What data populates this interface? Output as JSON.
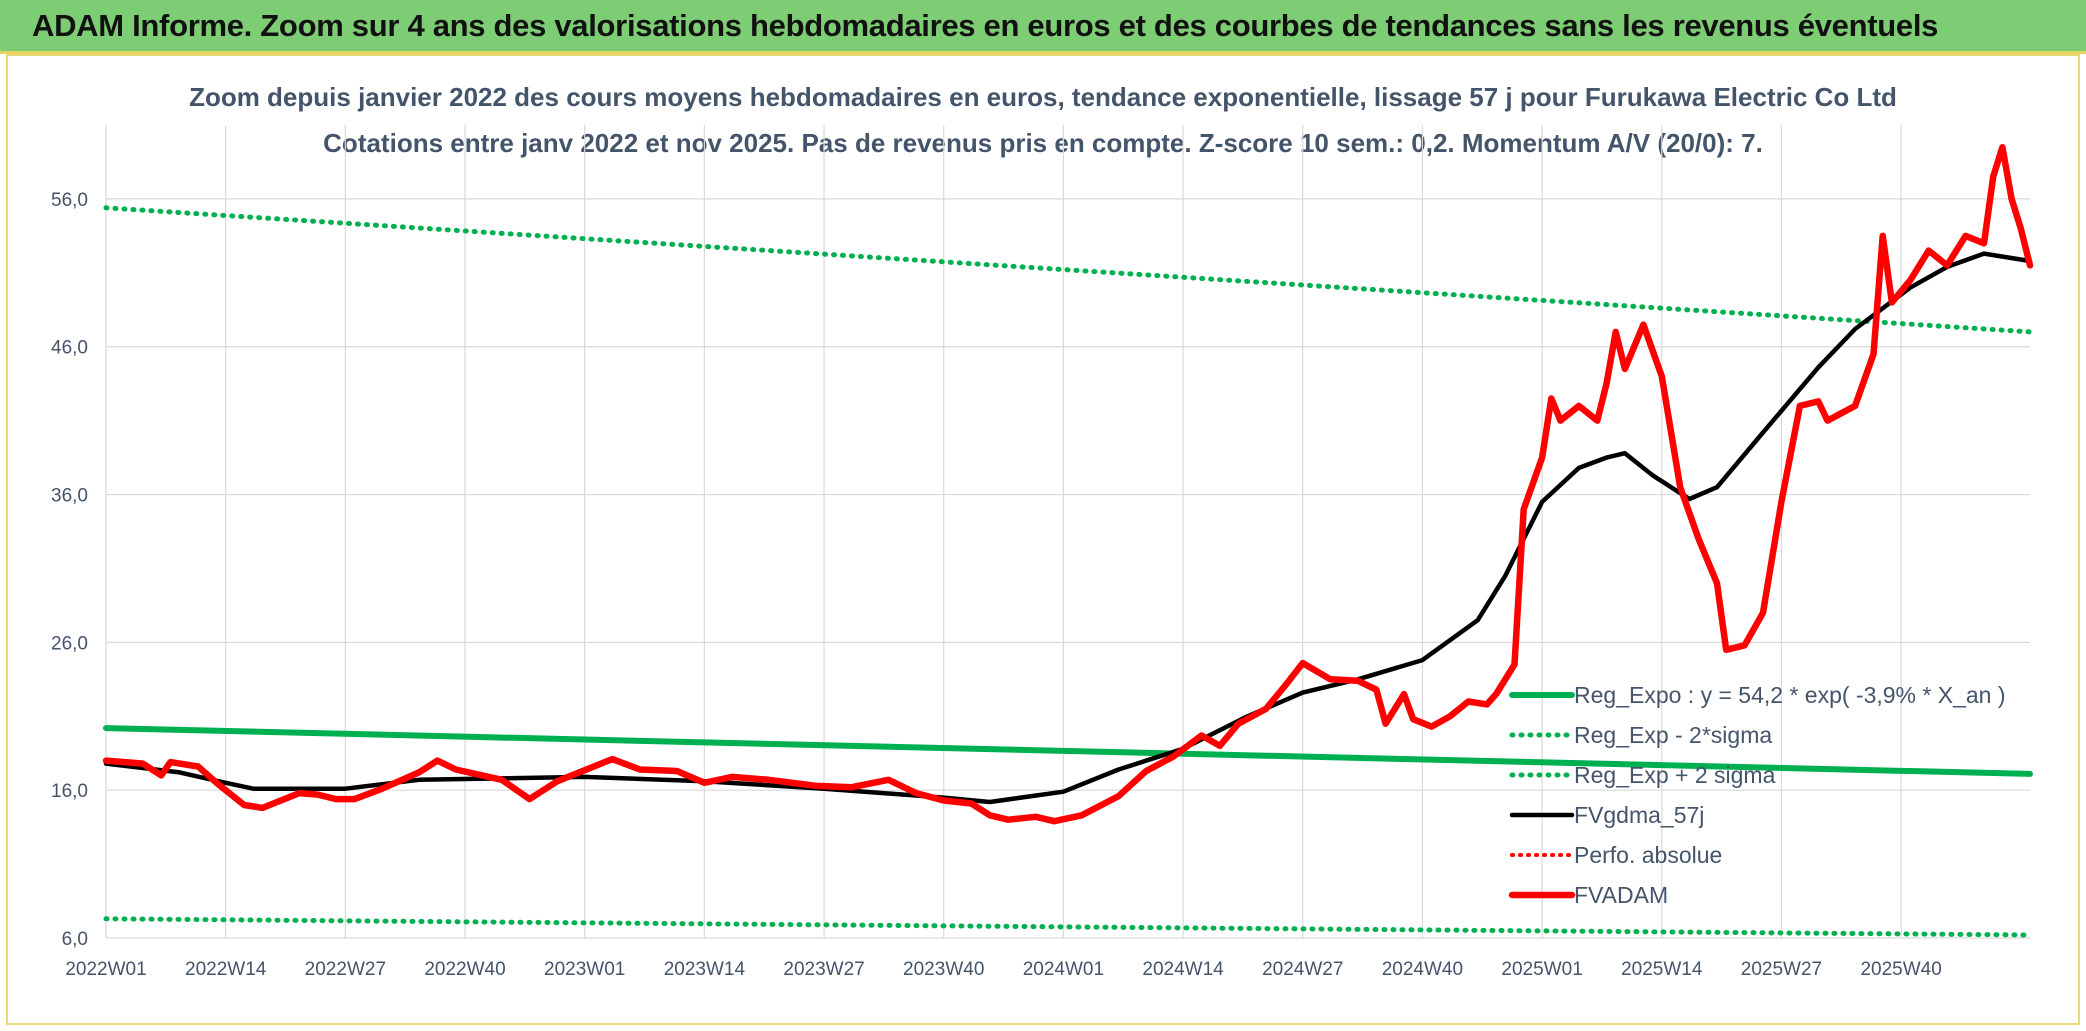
{
  "banner": {
    "title": "ADAM Informe. Zoom sur 4 ans des valorisations hebdomadaires en euros et des courbes de tendances sans les revenus éventuels"
  },
  "colors": {
    "banner_bg": "#7dcd74",
    "trend": "#00b050",
    "smoothed": "#000000",
    "price": "#ff0000",
    "text": "#44546a"
  },
  "chart_data": {
    "type": "line",
    "title": "Zoom depuis janvier 2022 des cours moyens hebdomadaires en euros, tendance exponentielle, lissage 57 j pour Furukawa Electric Co Ltd",
    "subtitle": "Cotations entre janv 2022 et nov 2025. Pas de revenus pris en compte. Z-score 10 sem.: 0,2. Momentum A/V (20/0): 7.",
    "xlabel": "",
    "ylabel": "",
    "ylim": [
      6,
      61
    ],
    "yticks": [
      "6,0",
      "16,0",
      "26,0",
      "36,0",
      "46,0",
      "56,0"
    ],
    "ytick_values": [
      6,
      16,
      26,
      36,
      46,
      56
    ],
    "xticks": [
      "2022W01",
      "2022W14",
      "2022W27",
      "2022W40",
      "2023W01",
      "2023W14",
      "2023W27",
      "2023W40",
      "2024W01",
      "2024W14",
      "2024W27",
      "2024W40",
      "2025W01",
      "2025W14",
      "2025W27",
      "2025W40"
    ],
    "xtick_index": [
      0,
      13,
      26,
      39,
      52,
      65,
      78,
      91,
      104,
      117,
      130,
      143,
      156,
      169,
      182,
      195
    ],
    "n_weeks": 210,
    "legend_position": "right",
    "series": [
      {
        "name": "Reg_Expo : y = 54,2 * exp( -3,9% *  X_an )",
        "style": "solid-green",
        "points": [
          [
            0,
            20.2
          ],
          [
            209,
            17.1
          ]
        ]
      },
      {
        "name": "Reg_Exp - 2*sigma",
        "style": "dotted-green",
        "points": [
          [
            0,
            7.3
          ],
          [
            209,
            6.2
          ]
        ]
      },
      {
        "name": "Reg_Exp + 2 sigma",
        "style": "dotted-green",
        "points": [
          [
            0,
            55.4
          ],
          [
            209,
            47.0
          ]
        ]
      },
      {
        "name": "FVgdma_57j",
        "style": "solid-black",
        "points": [
          [
            0,
            17.8
          ],
          [
            8,
            17.2
          ],
          [
            13,
            16.5
          ],
          [
            16,
            16.1
          ],
          [
            26,
            16.1
          ],
          [
            34,
            16.7
          ],
          [
            52,
            16.9
          ],
          [
            65,
            16.6
          ],
          [
            78,
            16.1
          ],
          [
            91,
            15.5
          ],
          [
            96,
            15.2
          ],
          [
            104,
            15.9
          ],
          [
            110,
            17.4
          ],
          [
            117,
            18.8
          ],
          [
            124,
            21.0
          ],
          [
            130,
            22.6
          ],
          [
            136,
            23.5
          ],
          [
            143,
            24.8
          ],
          [
            149,
            27.5
          ],
          [
            152,
            30.5
          ],
          [
            156,
            35.5
          ],
          [
            160,
            37.8
          ],
          [
            163,
            38.5
          ],
          [
            165,
            38.8
          ],
          [
            168,
            37.3
          ],
          [
            172,
            35.7
          ],
          [
            175,
            36.5
          ],
          [
            180,
            40.2
          ],
          [
            186,
            44.6
          ],
          [
            190,
            47.2
          ],
          [
            196,
            50.0
          ],
          [
            200,
            51.4
          ],
          [
            204,
            52.3
          ],
          [
            209,
            51.8
          ]
        ]
      },
      {
        "name": "Perfo. absolue",
        "style": "dotted-red",
        "points": []
      },
      {
        "name": "FVADAM",
        "style": "solid-red",
        "points": [
          [
            0,
            18.0
          ],
          [
            4,
            17.8
          ],
          [
            6,
            17.0
          ],
          [
            7,
            17.9
          ],
          [
            10,
            17.6
          ],
          [
            12,
            16.5
          ],
          [
            15,
            15.0
          ],
          [
            17,
            14.8
          ],
          [
            21,
            15.8
          ],
          [
            23,
            15.7
          ],
          [
            25,
            15.4
          ],
          [
            27,
            15.4
          ],
          [
            30,
            16.1
          ],
          [
            34,
            17.2
          ],
          [
            36,
            18.0
          ],
          [
            38,
            17.4
          ],
          [
            43,
            16.7
          ],
          [
            46,
            15.4
          ],
          [
            49,
            16.6
          ],
          [
            53,
            17.6
          ],
          [
            55,
            18.1
          ],
          [
            58,
            17.4
          ],
          [
            62,
            17.3
          ],
          [
            65,
            16.5
          ],
          [
            68,
            16.9
          ],
          [
            72,
            16.7
          ],
          [
            77,
            16.3
          ],
          [
            81,
            16.2
          ],
          [
            85,
            16.7
          ],
          [
            88,
            15.8
          ],
          [
            91,
            15.3
          ],
          [
            94,
            15.1
          ],
          [
            96,
            14.3
          ],
          [
            98,
            14.0
          ],
          [
            101,
            14.2
          ],
          [
            103,
            13.9
          ],
          [
            106,
            14.3
          ],
          [
            110,
            15.6
          ],
          [
            113,
            17.3
          ],
          [
            116,
            18.3
          ],
          [
            119,
            19.7
          ],
          [
            121,
            19.0
          ],
          [
            123,
            20.5
          ],
          [
            126,
            21.5
          ],
          [
            128,
            23.0
          ],
          [
            130,
            24.6
          ],
          [
            133,
            23.5
          ],
          [
            136,
            23.4
          ],
          [
            138,
            22.8
          ],
          [
            139,
            20.5
          ],
          [
            141,
            22.5
          ],
          [
            142,
            20.8
          ],
          [
            144,
            20.3
          ],
          [
            146,
            21.0
          ],
          [
            148,
            22.0
          ],
          [
            150,
            21.8
          ],
          [
            151,
            22.5
          ],
          [
            153,
            24.5
          ],
          [
            154,
            35.0
          ],
          [
            156,
            38.5
          ],
          [
            157,
            42.5
          ],
          [
            158,
            41.0
          ],
          [
            160,
            42.0
          ],
          [
            162,
            41.0
          ],
          [
            163,
            43.5
          ],
          [
            164,
            47.0
          ],
          [
            165,
            44.5
          ],
          [
            167,
            47.5
          ],
          [
            169,
            44.0
          ],
          [
            171,
            36.5
          ],
          [
            173,
            33.0
          ],
          [
            175,
            30.0
          ],
          [
            176,
            25.5
          ],
          [
            178,
            25.8
          ],
          [
            180,
            28.0
          ],
          [
            182,
            35.5
          ],
          [
            184,
            42.0
          ],
          [
            186,
            42.3
          ],
          [
            187,
            41.0
          ],
          [
            190,
            42.0
          ],
          [
            192,
            45.5
          ],
          [
            193,
            53.5
          ],
          [
            194,
            49.0
          ],
          [
            196,
            50.5
          ],
          [
            198,
            52.5
          ],
          [
            200,
            51.5
          ],
          [
            202,
            53.5
          ],
          [
            204,
            53.0
          ],
          [
            205,
            57.5
          ],
          [
            206,
            59.5
          ],
          [
            207,
            56.0
          ],
          [
            208,
            54.0
          ],
          [
            209,
            51.5
          ]
        ]
      }
    ]
  }
}
